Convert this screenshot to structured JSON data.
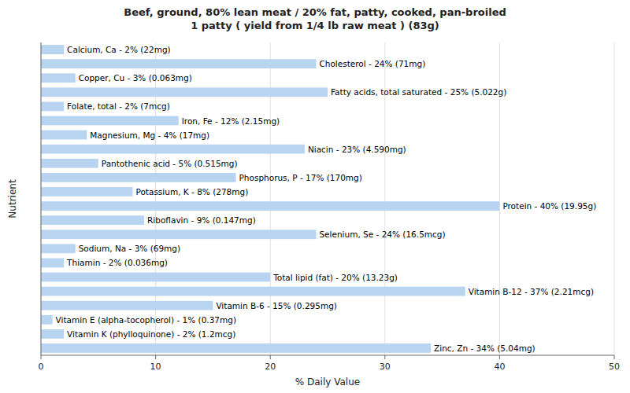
{
  "chart_data": {
    "type": "bar",
    "orientation": "horizontal",
    "title": "Beef, ground, 80% lean meat / 20% fat, patty, cooked, pan-broiled\n1 patty ( yield from 1/4 lb raw meat ) (83g)",
    "x_label": "% Daily Value",
    "y_label": "Nutrient",
    "categories": [
      "Calcium, Ca - 2% (22mg)",
      "Cholesterol - 24% (71mg)",
      "Copper, Cu - 3% (0.063mg)",
      "Fatty acids, total saturated - 25% (5.022g)",
      "Folate, total - 2% (7mcg)",
      "Iron, Fe - 12% (2.15mg)",
      "Magnesium, Mg - 4% (17mg)",
      "Niacin - 23% (4.590mg)",
      "Pantothenic acid - 5% (0.515mg)",
      "Phosphorus, P - 17% (170mg)",
      "Potassium, K - 8% (278mg)",
      "Protein - 40% (19.95g)",
      "Riboflavin - 9% (0.147mg)",
      "Selenium, Se - 24% (16.5mcg)",
      "Sodium, Na - 3% (69mg)",
      "Thiamin - 2% (0.036mg)",
      "Total lipid (fat) - 20% (13.23g)",
      "Vitamin B-12 - 37% (2.21mcg)",
      "Vitamin B-6 - 15% (0.295mg)",
      "Vitamin E (alpha-tocopherol) - 1% (0.37mg)",
      "Vitamin K (phylloquinone) - 2% (1.2mcg)",
      "Zinc, Zn - 34% (5.04mg)"
    ],
    "values": [
      2,
      24,
      3,
      25,
      2,
      12,
      4,
      23,
      5,
      17,
      8,
      40,
      9,
      24,
      3,
      2,
      20,
      37,
      15,
      1,
      2,
      34
    ],
    "color": "#b8d4f0",
    "xlim": [
      0,
      50
    ],
    "xticks": [
      0,
      10,
      20,
      30,
      40,
      50
    ],
    "grid": true,
    "tick_labels": "x"
  }
}
